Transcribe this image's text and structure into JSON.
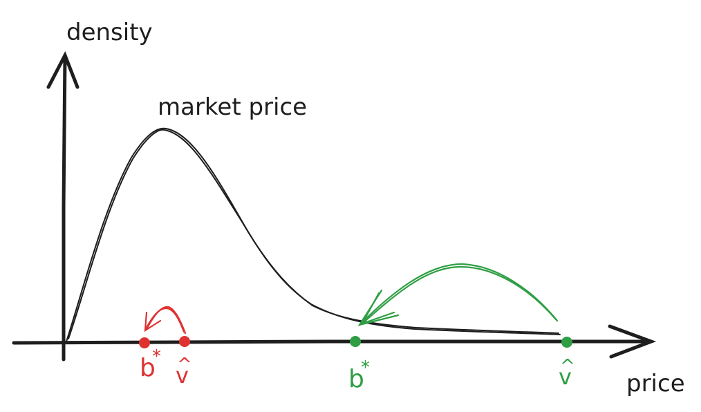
{
  "labels": {
    "y_axis": "density",
    "x_axis": "price",
    "curve": "market price",
    "bid_symbol": "b",
    "star": "*",
    "value_symbol": "v",
    "hat": "^"
  },
  "colors": {
    "ink": "#1e1e1e",
    "red": "#e03131",
    "green": "#2f9e44"
  }
}
